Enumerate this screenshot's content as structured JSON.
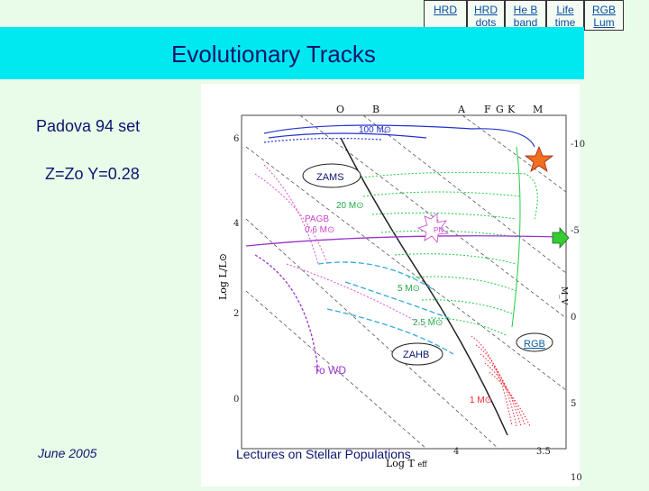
{
  "nav": [
    {
      "label": "HRD"
    },
    {
      "label": "HRD dots"
    },
    {
      "label": "He B band"
    },
    {
      "label": "Life time"
    },
    {
      "label": "RGB Lum"
    }
  ],
  "title": "Evolutionary Tracks",
  "left": {
    "set_label": "Padova 94 set",
    "composition": "Z=Zo Y=0.28"
  },
  "figure": {
    "spectral_types": [
      "O",
      "B",
      "A",
      "F",
      "G",
      "K",
      "M"
    ],
    "labels": {
      "m100": "100 M⊙",
      "zams": "ZAMS",
      "m20": "20 M⊙",
      "pagb": "PAGB",
      "m06": "0.6 M⊙",
      "pn": "PN",
      "m5": "5 M⊙",
      "m25": "2.5 M⊙",
      "rgb": "RGB",
      "zahb": "ZAHB",
      "towd": "To WD",
      "m1": "1 M⊙",
      "ylabel": "Log L/L⊙",
      "xlabel": "Log T",
      "xlabel_sub": "eff",
      "mv": "M_V"
    },
    "left_ticks": [
      "6",
      "4",
      "2",
      "0"
    ],
    "right_ticks": [
      "-10",
      "-5",
      "0",
      "5",
      "10"
    ],
    "bottom_ticks": [
      "4",
      "3.5"
    ]
  },
  "footer": {
    "date": "June 2005",
    "lecture": "Lectures on Stellar Populations"
  }
}
